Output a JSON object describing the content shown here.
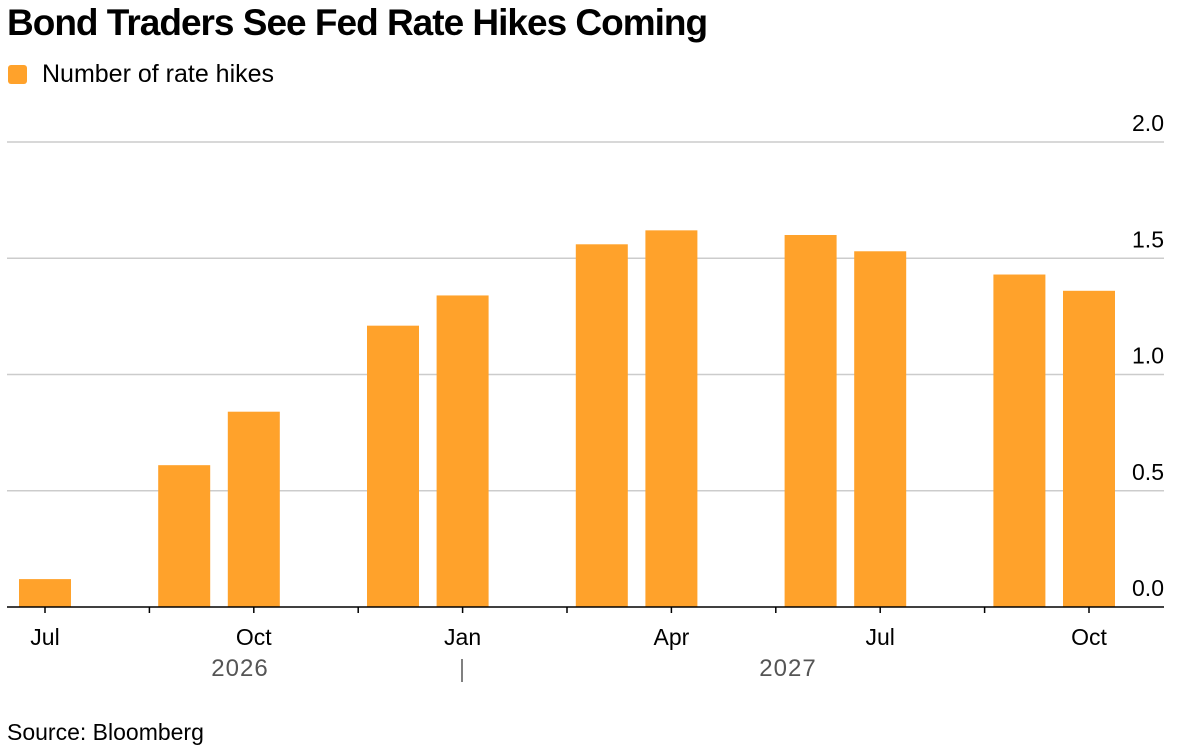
{
  "chart_data": {
    "type": "bar",
    "title": "Bond Traders See Fed Rate Hikes Coming",
    "source": "Source: Bloomberg",
    "series": [
      {
        "name": "Number of rate hikes",
        "color": "#FFA22B",
        "points": [
          {
            "x": "2026-07",
            "value": 0.12
          },
          {
            "x": "2026-09",
            "value": 0.61
          },
          {
            "x": "2026-10",
            "value": 0.84
          },
          {
            "x": "2026-12",
            "value": 1.21
          },
          {
            "x": "2027-01",
            "value": 1.34
          },
          {
            "x": "2027-03",
            "value": 1.56
          },
          {
            "x": "2027-04",
            "value": 1.62
          },
          {
            "x": "2027-06",
            "value": 1.6
          },
          {
            "x": "2027-07",
            "value": 1.53
          },
          {
            "x": "2027-09",
            "value": 1.43
          },
          {
            "x": "2027-10",
            "value": 1.36
          }
        ]
      }
    ],
    "x_axis": {
      "range": [
        "2026-07",
        "2027-10"
      ],
      "tick_labels": [
        {
          "x": "2026-07",
          "label": "Jul"
        },
        {
          "x": "2026-10",
          "label": "Oct"
        },
        {
          "x": "2027-01",
          "label": "Jan"
        },
        {
          "x": "2027-04",
          "label": "Apr"
        },
        {
          "x": "2027-07",
          "label": "Jul"
        },
        {
          "x": "2027-10",
          "label": "Oct"
        }
      ],
      "minor_ticks": [
        "2026-08.5",
        "2026-11.5",
        "2027-02.5",
        "2027-05.5",
        "2027-08.5"
      ],
      "year_labels": [
        {
          "label": "2026",
          "from": "2026-07",
          "to": "2026-12"
        },
        {
          "label": "2027",
          "from": "2027-01",
          "to": "2027-10"
        }
      ]
    },
    "y_axis": {
      "range": [
        0,
        2.0
      ],
      "ticks": [
        "0.0",
        "0.5",
        "1.0",
        "1.5",
        "2.0"
      ],
      "side": "right"
    },
    "grid": true,
    "legend_position": "top-left"
  }
}
